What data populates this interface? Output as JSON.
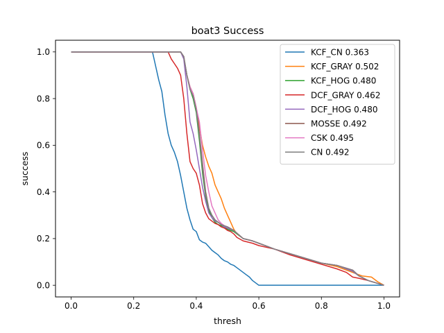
{
  "chart_data": {
    "type": "line",
    "title": "boat3 Success",
    "xlabel": "thresh",
    "ylabel": "success",
    "xlim": [
      -0.05,
      1.05
    ],
    "ylim": [
      -0.05,
      1.05
    ],
    "xticks": [
      "0.0",
      "0.2",
      "0.4",
      "0.6",
      "0.8",
      "1.0"
    ],
    "yticks": [
      "0.0",
      "0.2",
      "0.4",
      "0.6",
      "0.8",
      "1.0"
    ],
    "grid": false,
    "legend_position": "upper right",
    "series": [
      {
        "name": "KCF_CN 0.363",
        "color": "#1f77b4",
        "x": [
          0,
          0.26,
          0.27,
          0.28,
          0.29,
          0.3,
          0.31,
          0.32,
          0.33,
          0.34,
          0.35,
          0.36,
          0.37,
          0.38,
          0.39,
          0.4,
          0.41,
          0.42,
          0.43,
          0.44,
          0.45,
          0.46,
          0.47,
          0.48,
          0.49,
          0.5,
          0.51,
          0.52,
          0.53,
          0.54,
          0.55,
          0.56,
          0.57,
          0.58,
          0.59,
          0.6,
          0.7,
          0.8,
          0.9,
          1.0
        ],
        "y": [
          1.0,
          1.0,
          0.94,
          0.88,
          0.83,
          0.73,
          0.65,
          0.6,
          0.57,
          0.53,
          0.47,
          0.4,
          0.33,
          0.28,
          0.24,
          0.23,
          0.195,
          0.185,
          0.18,
          0.165,
          0.15,
          0.14,
          0.13,
          0.115,
          0.105,
          0.1,
          0.09,
          0.085,
          0.075,
          0.065,
          0.055,
          0.045,
          0.035,
          0.02,
          0.01,
          0.0,
          0.0,
          0.0,
          0.0,
          0.0
        ]
      },
      {
        "name": "KCF_GRAY 0.502",
        "color": "#ff7f0e",
        "x": [
          0,
          0.35,
          0.36,
          0.37,
          0.38,
          0.39,
          0.4,
          0.41,
          0.42,
          0.43,
          0.44,
          0.45,
          0.46,
          0.47,
          0.48,
          0.49,
          0.5,
          0.51,
          0.52,
          0.53,
          0.55,
          0.58,
          0.6,
          0.65,
          0.7,
          0.75,
          0.8,
          0.85,
          0.9,
          0.93,
          0.96,
          0.98,
          1.0
        ],
        "y": [
          1.0,
          1.0,
          0.98,
          0.9,
          0.85,
          0.82,
          0.76,
          0.68,
          0.6,
          0.55,
          0.51,
          0.48,
          0.43,
          0.4,
          0.37,
          0.33,
          0.3,
          0.27,
          0.24,
          0.22,
          0.2,
          0.19,
          0.18,
          0.155,
          0.135,
          0.115,
          0.095,
          0.08,
          0.055,
          0.04,
          0.035,
          0.015,
          0.0
        ]
      },
      {
        "name": "KCF_HOG 0.480",
        "color": "#2ca02c",
        "x": [
          0,
          0.35,
          0.36,
          0.37,
          0.38,
          0.39,
          0.4,
          0.41,
          0.42,
          0.43,
          0.44,
          0.45,
          0.46,
          0.47,
          0.48,
          0.49,
          0.5,
          0.52,
          0.55,
          0.58,
          0.6,
          0.65,
          0.7,
          0.75,
          0.8,
          0.85,
          0.9,
          0.92,
          0.95,
          1.0
        ],
        "y": [
          1.0,
          1.0,
          0.98,
          0.9,
          0.84,
          0.8,
          0.74,
          0.62,
          0.48,
          0.38,
          0.32,
          0.29,
          0.27,
          0.26,
          0.255,
          0.25,
          0.24,
          0.23,
          0.2,
          0.19,
          0.18,
          0.155,
          0.135,
          0.115,
          0.095,
          0.085,
          0.06,
          0.04,
          0.02,
          0.0
        ]
      },
      {
        "name": "DCF_GRAY 0.462",
        "color": "#d62728",
        "x": [
          0,
          0.31,
          0.32,
          0.33,
          0.34,
          0.35,
          0.36,
          0.37,
          0.38,
          0.39,
          0.4,
          0.41,
          0.42,
          0.43,
          0.44,
          0.45,
          0.46,
          0.47,
          0.48,
          0.49,
          0.5,
          0.51,
          0.52,
          0.53,
          0.55,
          0.58,
          0.6,
          0.65,
          0.7,
          0.75,
          0.8,
          0.85,
          0.88,
          0.9,
          0.92,
          0.95,
          1.0
        ],
        "y": [
          1.0,
          1.0,
          0.97,
          0.95,
          0.93,
          0.9,
          0.8,
          0.65,
          0.53,
          0.5,
          0.48,
          0.43,
          0.35,
          0.31,
          0.285,
          0.275,
          0.265,
          0.26,
          0.25,
          0.245,
          0.235,
          0.23,
          0.22,
          0.205,
          0.19,
          0.18,
          0.17,
          0.155,
          0.13,
          0.11,
          0.09,
          0.07,
          0.055,
          0.035,
          0.03,
          0.02,
          0.0
        ]
      },
      {
        "name": "DCF_HOG 0.480",
        "color": "#9467bd",
        "x": [
          0,
          0.35,
          0.36,
          0.37,
          0.38,
          0.39,
          0.4,
          0.41,
          0.42,
          0.43,
          0.44,
          0.45,
          0.46,
          0.47,
          0.48,
          0.49,
          0.5,
          0.52,
          0.55,
          0.58,
          0.6,
          0.65,
          0.7,
          0.75,
          0.8,
          0.85,
          0.9,
          0.92,
          0.95,
          1.0
        ],
        "y": [
          1.0,
          1.0,
          0.97,
          0.85,
          0.7,
          0.65,
          0.58,
          0.5,
          0.42,
          0.36,
          0.31,
          0.29,
          0.275,
          0.27,
          0.26,
          0.25,
          0.245,
          0.235,
          0.2,
          0.19,
          0.18,
          0.155,
          0.135,
          0.115,
          0.095,
          0.085,
          0.06,
          0.04,
          0.02,
          0.0
        ]
      },
      {
        "name": "MOSSE 0.492",
        "color": "#8c564b",
        "x": [
          0,
          0.35,
          0.36,
          0.37,
          0.38,
          0.39,
          0.4,
          0.41,
          0.42,
          0.43,
          0.44,
          0.45,
          0.46,
          0.47,
          0.48,
          0.49,
          0.5,
          0.52,
          0.55,
          0.58,
          0.6,
          0.65,
          0.7,
          0.75,
          0.8,
          0.85,
          0.9,
          0.92,
          0.95,
          1.0
        ],
        "y": [
          1.0,
          1.0,
          0.98,
          0.9,
          0.85,
          0.82,
          0.76,
          0.65,
          0.52,
          0.4,
          0.33,
          0.3,
          0.28,
          0.27,
          0.26,
          0.255,
          0.25,
          0.235,
          0.2,
          0.19,
          0.18,
          0.155,
          0.135,
          0.115,
          0.095,
          0.085,
          0.065,
          0.04,
          0.02,
          0.0
        ]
      },
      {
        "name": "CSK 0.495",
        "color": "#e377c2",
        "x": [
          0,
          0.35,
          0.36,
          0.37,
          0.38,
          0.39,
          0.4,
          0.41,
          0.42,
          0.43,
          0.44,
          0.45,
          0.46,
          0.47,
          0.48,
          0.49,
          0.5,
          0.52,
          0.55,
          0.58,
          0.6,
          0.65,
          0.7,
          0.75,
          0.8,
          0.85,
          0.9,
          0.92,
          0.95,
          1.0
        ],
        "y": [
          1.0,
          1.0,
          0.98,
          0.9,
          0.85,
          0.82,
          0.76,
          0.7,
          0.58,
          0.47,
          0.4,
          0.34,
          0.31,
          0.28,
          0.265,
          0.255,
          0.25,
          0.235,
          0.2,
          0.19,
          0.18,
          0.155,
          0.135,
          0.115,
          0.095,
          0.085,
          0.065,
          0.04,
          0.02,
          0.0
        ]
      },
      {
        "name": "CN 0.492",
        "color": "#7f7f7f",
        "x": [
          0,
          0.35,
          0.36,
          0.37,
          0.38,
          0.39,
          0.4,
          0.41,
          0.42,
          0.43,
          0.44,
          0.45,
          0.46,
          0.47,
          0.48,
          0.49,
          0.5,
          0.52,
          0.55,
          0.58,
          0.6,
          0.65,
          0.7,
          0.75,
          0.8,
          0.85,
          0.9,
          0.92,
          0.95,
          1.0
        ],
        "y": [
          1.0,
          1.0,
          0.98,
          0.9,
          0.84,
          0.81,
          0.75,
          0.64,
          0.5,
          0.39,
          0.33,
          0.3,
          0.28,
          0.27,
          0.26,
          0.255,
          0.25,
          0.235,
          0.2,
          0.19,
          0.18,
          0.155,
          0.135,
          0.115,
          0.095,
          0.085,
          0.065,
          0.04,
          0.02,
          0.0
        ]
      }
    ]
  }
}
